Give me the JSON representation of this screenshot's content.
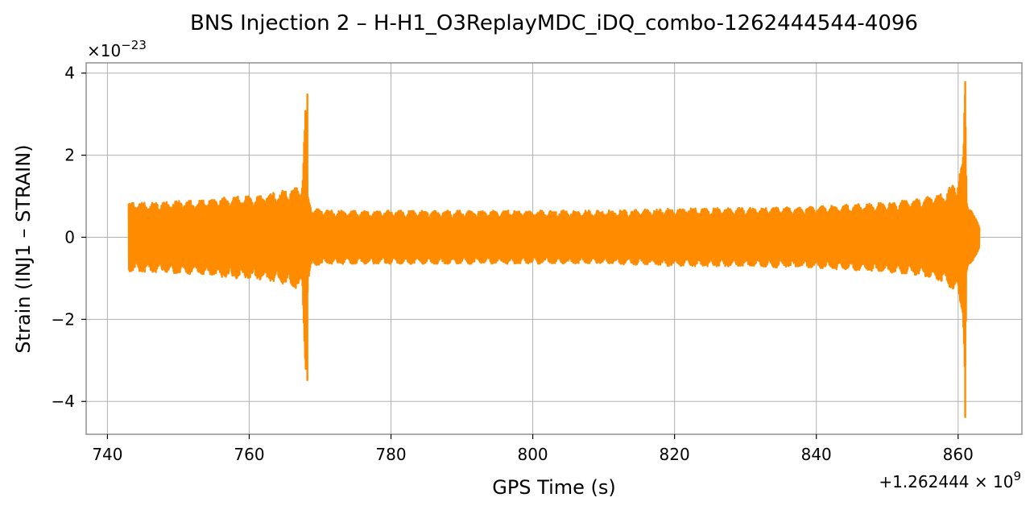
{
  "chart_data": {
    "type": "line",
    "title": "BNS Injection 2 – H-H1_O3ReplayMDC_iDQ_combo-1262444544-4096",
    "xlabel": "GPS Time (s)",
    "ylabel": "Strain (INJ1 – STRAIN)",
    "x_offset_label": "+1.262444 × 10",
    "x_offset_exponent": "9",
    "y_scale_label": "×10",
    "y_scale_exponent": "−23",
    "xlim": [
      737,
      869
    ],
    "ylim": [
      -4.8,
      4.25
    ],
    "x_ticks": [
      740,
      760,
      780,
      800,
      820,
      840,
      860
    ],
    "x_tick_labels": [
      "740",
      "760",
      "780",
      "800",
      "820",
      "840",
      "860"
    ],
    "y_ticks": [
      -4,
      -2,
      0,
      2,
      4
    ],
    "y_tick_labels": [
      "−4",
      "−2",
      "0",
      "2",
      "4"
    ],
    "grid": true,
    "line_color": "#ff8c00",
    "series": [
      {
        "x_start": 743.0,
        "x_end": 863.0,
        "envelope_x": [
          743.0,
          745,
          748,
          750,
          753,
          755,
          758,
          760,
          762,
          764,
          766,
          767.5,
          768.0,
          768.3,
          769,
          772,
          775,
          780,
          790,
          800,
          810,
          820,
          830,
          840,
          845,
          850,
          855,
          858,
          860,
          860.7,
          861.0,
          861.2,
          862,
          863.0
        ],
        "envelope_amp": [
          0.85,
          0.85,
          0.85,
          0.9,
          0.9,
          0.95,
          1.0,
          1.0,
          1.05,
          1.1,
          1.2,
          1.3,
          3.5,
          1.0,
          0.7,
          0.65,
          0.65,
          0.65,
          0.65,
          0.65,
          0.65,
          0.7,
          0.72,
          0.75,
          0.8,
          0.85,
          0.95,
          1.1,
          1.4,
          2.0,
          3.8,
          1.0,
          0.6,
          0.3
        ],
        "spike_1": {
          "x": 768.2,
          "max": 3.5,
          "min": -3.5
        },
        "spike_2": {
          "x": 861.0,
          "max": 3.8,
          "min": -4.4
        }
      }
    ]
  }
}
